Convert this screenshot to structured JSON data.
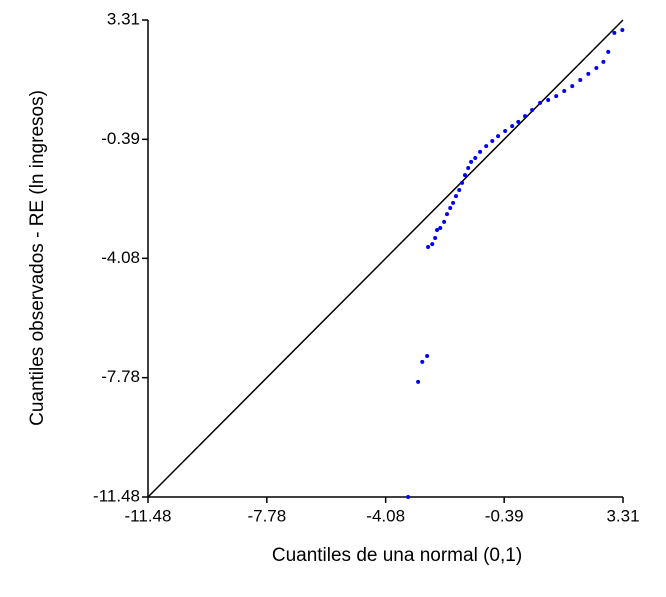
{
  "chart_data": {
    "type": "scatter",
    "x_label": "Cuantiles de una normal (0,1)",
    "y_label": "Cuantiles observados - RE (ln ingresos)",
    "xlim": [
      -11.48,
      3.31
    ],
    "ylim": [
      -11.48,
      3.31
    ],
    "xticks": [
      -11.48,
      -7.78,
      -4.08,
      -0.39,
      3.31
    ],
    "yticks": [
      -11.48,
      -7.78,
      -4.08,
      -0.39,
      3.31
    ],
    "reference_line": true,
    "color": "#0000ff",
    "x": [
      -3.38,
      -3.07,
      -2.94,
      -2.79,
      -2.76,
      -2.63,
      -2.54,
      -2.48,
      -2.38,
      -2.26,
      -2.17,
      -2.07,
      -1.98,
      -1.89,
      -1.79,
      -1.7,
      -1.61,
      -1.51,
      -1.42,
      -1.29,
      -1.14,
      -0.95,
      -0.76,
      -0.58,
      -0.36,
      -0.14,
      0.05,
      0.26,
      0.48,
      0.73,
      0.98,
      1.23,
      1.48,
      1.73,
      1.98,
      2.23,
      2.48,
      2.7,
      2.85,
      3.04,
      3.29
    ],
    "y": [
      -11.48,
      -7.91,
      -7.29,
      -7.11,
      -3.73,
      -3.64,
      -3.45,
      -3.2,
      -3.14,
      -2.95,
      -2.71,
      -2.52,
      -2.36,
      -2.15,
      -1.96,
      -1.74,
      -1.5,
      -1.28,
      -1.09,
      -0.97,
      -0.78,
      -0.6,
      -0.44,
      -0.29,
      -0.13,
      0.02,
      0.15,
      0.33,
      0.52,
      0.74,
      0.83,
      0.95,
      1.11,
      1.26,
      1.45,
      1.64,
      1.82,
      2.01,
      2.32,
      2.91,
      3.0
    ]
  }
}
